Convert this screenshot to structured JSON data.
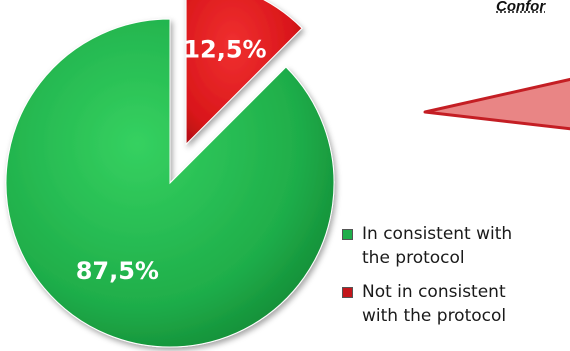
{
  "header": {
    "partial_title": "Confor"
  },
  "chart_data": {
    "type": "pie",
    "categories": [
      "In consistent with the protocol",
      "Not in consistent with the protocol"
    ],
    "values": [
      87.5,
      12.5
    ],
    "data_labels": [
      "87,5%",
      "12,5%"
    ],
    "colors": [
      "#1fae4a",
      "#d9161a"
    ],
    "exploded_slice": 1,
    "legend_position": "right",
    "title": ""
  },
  "legend": {
    "items": [
      {
        "line1": "In consistent with",
        "line2": "the protocol",
        "color": "#1fae4a"
      },
      {
        "line1": "Not in consistent",
        "line2": "with the protocol",
        "color": "#c3161b"
      }
    ]
  },
  "callout": {
    "fill": "#e98585",
    "stroke": "#c41e24"
  }
}
